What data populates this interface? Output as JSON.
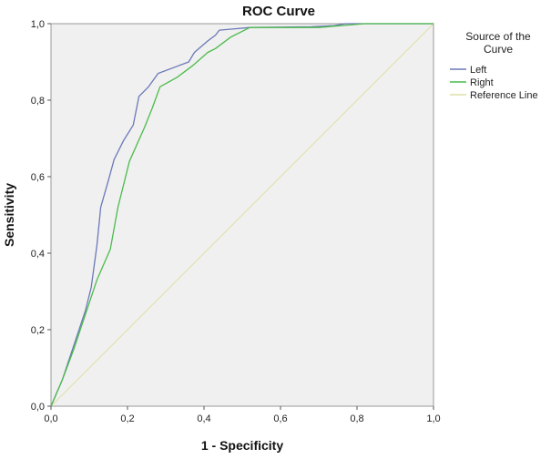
{
  "chart_data": {
    "type": "line",
    "title": "ROC Curve",
    "xlabel": "1 - Specificity",
    "ylabel": "Sensitivity",
    "xlim": [
      0,
      1
    ],
    "ylim": [
      0,
      1
    ],
    "x_ticks": [
      "0,0",
      "0,2",
      "0,4",
      "0,6",
      "0,8",
      "1,0"
    ],
    "y_ticks": [
      "0,0",
      "0,2",
      "0,4",
      "0,6",
      "0,8",
      "1,0"
    ],
    "grid": false,
    "legend": {
      "title_lines": [
        "Source of the",
        "Curve"
      ],
      "placement": "right"
    },
    "colors": {
      "plot_background": "#f0f0f0",
      "left": "#6b78b8",
      "right": "#4cbb4c",
      "reference": "#e0e0a8"
    },
    "series": [
      {
        "name": "Left",
        "color": "#6b78b8",
        "points": [
          [
            0.0,
            0.0
          ],
          [
            0.03,
            0.07
          ],
          [
            0.06,
            0.16
          ],
          [
            0.09,
            0.25
          ],
          [
            0.105,
            0.31
          ],
          [
            0.12,
            0.42
          ],
          [
            0.13,
            0.52
          ],
          [
            0.15,
            0.59
          ],
          [
            0.165,
            0.645
          ],
          [
            0.19,
            0.695
          ],
          [
            0.215,
            0.735
          ],
          [
            0.23,
            0.81
          ],
          [
            0.255,
            0.835
          ],
          [
            0.28,
            0.87
          ],
          [
            0.32,
            0.885
          ],
          [
            0.36,
            0.9
          ],
          [
            0.375,
            0.925
          ],
          [
            0.41,
            0.955
          ],
          [
            0.43,
            0.97
          ],
          [
            0.44,
            0.983
          ],
          [
            0.52,
            0.99
          ],
          [
            0.68,
            0.992
          ],
          [
            0.74,
            0.995
          ],
          [
            0.77,
            1.0
          ],
          [
            1.0,
            1.0
          ]
        ]
      },
      {
        "name": "Right",
        "color": "#4cbb4c",
        "points": [
          [
            0.0,
            0.0
          ],
          [
            0.03,
            0.07
          ],
          [
            0.06,
            0.15
          ],
          [
            0.09,
            0.24
          ],
          [
            0.12,
            0.33
          ],
          [
            0.155,
            0.41
          ],
          [
            0.175,
            0.52
          ],
          [
            0.205,
            0.64
          ],
          [
            0.245,
            0.73
          ],
          [
            0.265,
            0.78
          ],
          [
            0.285,
            0.835
          ],
          [
            0.33,
            0.86
          ],
          [
            0.37,
            0.89
          ],
          [
            0.41,
            0.925
          ],
          [
            0.43,
            0.935
          ],
          [
            0.47,
            0.965
          ],
          [
            0.52,
            0.99
          ],
          [
            0.6,
            0.99
          ],
          [
            0.7,
            0.99
          ],
          [
            0.76,
            0.995
          ],
          [
            0.82,
            1.0
          ],
          [
            1.0,
            1.0
          ]
        ]
      },
      {
        "name": "Reference Line",
        "color": "#e0e0a8",
        "points": [
          [
            0,
            0
          ],
          [
            1,
            1
          ]
        ]
      }
    ]
  }
}
